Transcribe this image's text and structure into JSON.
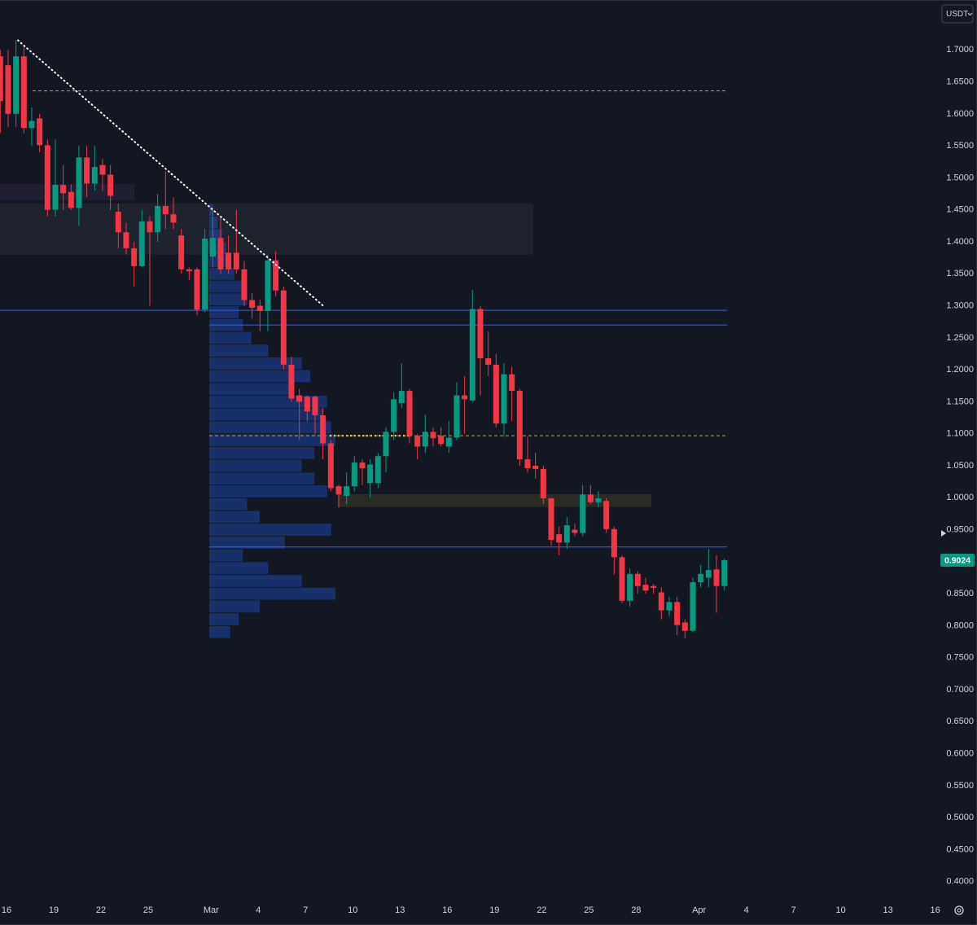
{
  "chart_data": {
    "type": "candlestick",
    "currency": "USDT",
    "up_color": "#089981",
    "down_color": "#f23645",
    "ylim": [
      0.378,
      1.778
    ],
    "yticks": [
      {
        "value": 1.7,
        "label": "1.7000"
      },
      {
        "value": 1.65,
        "label": "1.6500"
      },
      {
        "value": 1.6,
        "label": "1.6000"
      },
      {
        "value": 1.55,
        "label": "1.5500"
      },
      {
        "value": 1.5,
        "label": "1.5000"
      },
      {
        "value": 1.45,
        "label": "1.4500"
      },
      {
        "value": 1.4,
        "label": "1.4000"
      },
      {
        "value": 1.35,
        "label": "1.3500"
      },
      {
        "value": 1.3,
        "label": "1.3000"
      },
      {
        "value": 1.25,
        "label": "1.2500"
      },
      {
        "value": 1.2,
        "label": "1.2000"
      },
      {
        "value": 1.15,
        "label": "1.1500"
      },
      {
        "value": 1.1,
        "label": "1.1000"
      },
      {
        "value": 1.05,
        "label": "1.0500"
      },
      {
        "value": 1.0,
        "label": "1.0000"
      },
      {
        "value": 0.95,
        "label": "0.9500"
      },
      {
        "value": 0.9,
        "label": "0.9000"
      },
      {
        "value": 0.85,
        "label": "0.8500"
      },
      {
        "value": 0.8,
        "label": "0.8000"
      },
      {
        "value": 0.75,
        "label": "0.7500"
      },
      {
        "value": 0.7,
        "label": "0.7000"
      },
      {
        "value": 0.65,
        "label": "0.6500"
      },
      {
        "value": 0.6,
        "label": "0.6000"
      },
      {
        "value": 0.55,
        "label": "0.5500"
      },
      {
        "value": 0.5,
        "label": "0.5000"
      },
      {
        "value": 0.45,
        "label": "0.4500"
      },
      {
        "value": 0.4,
        "label": "0.4000"
      }
    ],
    "categories": [
      null,
      "16",
      null,
      null,
      null,
      null,
      null,
      "19",
      null,
      null,
      null,
      null,
      null,
      "22",
      null,
      null,
      null,
      null,
      null,
      "25",
      null,
      null,
      null,
      null,
      null,
      null,
      null,
      "Mar",
      null,
      null,
      null,
      null,
      null,
      "4",
      null,
      null,
      null,
      null,
      null,
      "7",
      null,
      null,
      null,
      null,
      null,
      "10",
      null,
      null,
      null,
      null,
      null,
      "13",
      null,
      null,
      null,
      null,
      null,
      "16",
      null,
      null,
      null,
      null,
      null,
      "19",
      null,
      null,
      null,
      null,
      null,
      "22",
      null,
      null,
      null,
      null,
      null,
      "25",
      null,
      null,
      null,
      null,
      null,
      "28",
      null,
      null,
      null,
      null,
      null,
      null,
      null,
      "Apr",
      null,
      null,
      null,
      null,
      null,
      "4",
      null,
      null,
      null,
      null,
      null,
      "7",
      null,
      null,
      null,
      null,
      null,
      "10",
      null,
      null,
      null,
      null,
      null,
      "13",
      null,
      null,
      null,
      null,
      null,
      "16"
    ],
    "open": [
      1.69,
      1.676,
      1.6,
      1.69,
      1.578,
      1.593,
      1.551,
      1.45,
      1.489,
      1.478,
      1.453,
      1.532,
      1.491,
      1.52,
      1.505,
      1.447,
      1.415,
      1.39,
      1.362,
      1.432,
      1.415,
      1.456,
      1.443,
      1.41,
      1.357,
      1.357,
      1.294,
      1.377,
      1.406,
      1.383,
      1.383,
      1.357,
      1.309,
      1.3,
      1.292,
      1.371,
      1.324,
      1.208,
      1.16,
      1.158,
      1.158,
      1.129,
      1.085,
      1.018,
      1.003,
      1.018,
      1.055,
      1.023,
      1.023,
      1.065,
      1.103,
      1.148,
      1.167,
      1.097,
      1.08,
      1.103,
      1.097,
      1.08,
      1.094,
      1.16,
      1.152,
      1.295,
      1.218,
      1.208,
      1.116,
      1.193,
      1.167,
      1.06,
      1.05,
      1.045,
      0.999,
      0.943,
      0.93,
      0.95,
      0.945,
      1.005,
      0.993,
      0.995,
      0.951,
      0.907,
      0.839,
      0.881,
      0.864,
      0.862,
      0.852,
      0.824,
      0.837,
      0.805,
      0.792,
      0.868,
      0.875,
      0.888,
      0.862,
      null,
      null,
      null,
      null,
      null,
      null,
      null,
      null,
      null,
      null,
      null,
      null,
      null,
      null,
      null,
      null,
      null,
      null,
      null,
      null,
      null,
      null,
      null,
      null,
      null,
      null,
      null
    ],
    "high": [
      1.7,
      1.7,
      1.715,
      1.705,
      1.61,
      1.6,
      1.56,
      1.56,
      1.52,
      1.49,
      1.55,
      1.55,
      1.55,
      1.53,
      1.52,
      1.46,
      1.43,
      1.4,
      1.45,
      1.44,
      1.475,
      1.51,
      1.47,
      1.42,
      1.36,
      1.36,
      1.42,
      1.45,
      1.44,
      1.41,
      1.45,
      1.37,
      1.32,
      1.31,
      1.38,
      1.385,
      1.33,
      1.22,
      1.17,
      1.16,
      1.16,
      1.14,
      1.09,
      1.02,
      1.04,
      1.065,
      1.06,
      1.06,
      1.07,
      1.11,
      1.165,
      1.21,
      1.17,
      1.1,
      1.13,
      1.11,
      1.11,
      1.12,
      1.18,
      1.19,
      1.325,
      1.3,
      1.26,
      1.225,
      1.21,
      1.205,
      1.17,
      1.095,
      1.07,
      1.05,
      1.0,
      0.955,
      0.97,
      0.96,
      1.02,
      1.02,
      1.01,
      1.0,
      0.955,
      0.91,
      0.89,
      0.885,
      0.875,
      0.865,
      0.86,
      0.845,
      0.845,
      0.81,
      0.875,
      0.895,
      0.92,
      0.91,
      0.905,
      null,
      null,
      null,
      null,
      null,
      null,
      null,
      null,
      null,
      null,
      null,
      null,
      null,
      null,
      null,
      null,
      null,
      null,
      null,
      null,
      null,
      null,
      null,
      null,
      null,
      null,
      null
    ],
    "low": [
      1.57,
      1.58,
      1.58,
      1.57,
      1.55,
      1.54,
      1.44,
      1.44,
      1.45,
      1.45,
      1.425,
      1.47,
      1.48,
      1.48,
      1.45,
      1.39,
      1.38,
      1.33,
      1.36,
      1.3,
      1.4,
      1.42,
      1.42,
      1.35,
      1.34,
      1.285,
      1.29,
      1.36,
      1.35,
      1.35,
      1.35,
      1.3,
      1.28,
      1.26,
      1.26,
      1.315,
      1.2,
      1.15,
      1.09,
      1.12,
      1.1,
      1.06,
      1.01,
      0.985,
      0.99,
      1.01,
      1.02,
      1.0,
      1.015,
      1.04,
      1.09,
      1.14,
      1.085,
      1.06,
      1.07,
      1.08,
      1.08,
      1.07,
      1.09,
      1.1,
      1.15,
      1.16,
      1.19,
      1.11,
      1.095,
      1.12,
      1.05,
      1.04,
      1.03,
      0.99,
      0.925,
      0.91,
      0.92,
      0.94,
      0.94,
      0.99,
      0.985,
      0.945,
      0.88,
      0.835,
      0.83,
      0.85,
      0.85,
      0.85,
      0.81,
      0.815,
      0.785,
      0.78,
      0.79,
      0.86,
      0.86,
      0.82,
      0.855,
      null,
      null,
      null,
      null,
      null,
      null,
      null,
      null,
      null,
      null,
      null,
      null,
      null,
      null,
      null,
      null,
      null,
      null,
      null,
      null,
      null,
      null,
      null,
      null,
      null,
      null,
      null
    ],
    "close": [
      1.62,
      1.6,
      1.69,
      1.578,
      1.589,
      1.551,
      1.45,
      1.489,
      1.476,
      1.453,
      1.532,
      1.491,
      1.517,
      1.505,
      1.472,
      1.415,
      1.39,
      1.362,
      1.432,
      1.415,
      1.456,
      1.443,
      1.43,
      1.357,
      1.354,
      1.294,
      1.405,
      1.406,
      1.357,
      1.357,
      1.357,
      1.309,
      1.297,
      1.292,
      1.371,
      1.324,
      1.208,
      1.155,
      1.15,
      1.135,
      1.129,
      1.085,
      1.015,
      1.005,
      1.018,
      1.055,
      1.046,
      1.052,
      1.065,
      1.103,
      1.154,
      1.167,
      1.097,
      1.08,
      1.103,
      1.093,
      1.084,
      1.094,
      1.16,
      1.154,
      1.295,
      1.218,
      1.208,
      1.116,
      1.193,
      1.167,
      1.06,
      1.046,
      1.045,
      0.999,
      0.934,
      0.93,
      0.957,
      0.945,
      1.005,
      0.993,
      0.999,
      0.951,
      0.907,
      0.839,
      0.881,
      0.862,
      0.855,
      0.859,
      0.824,
      0.837,
      0.801,
      0.792,
      0.868,
      0.881,
      0.887,
      0.862,
      0.9024,
      null,
      null,
      null,
      null,
      null,
      null,
      null,
      null,
      null,
      null,
      null,
      null,
      null,
      null,
      null,
      null,
      null,
      null,
      null,
      null,
      null,
      null,
      null,
      null,
      null,
      null,
      null
    ],
    "last_price": {
      "value": 0.9024,
      "label": "0.9024"
    },
    "levels": [
      {
        "price": 1.293,
        "color": "#2962ff",
        "style": "solid"
      },
      {
        "price": 1.27,
        "color": "#2962ff",
        "style": "solid"
      },
      {
        "price": 0.923,
        "color": "#2962ff",
        "style": "solid"
      },
      {
        "price": 1.636,
        "color": "#c9a227",
        "style": "dashed"
      },
      {
        "price": 1.097,
        "color": "#c9a227",
        "style": "dashed"
      },
      {
        "price": 1.097,
        "color": "#f5e146",
        "style": "dotted"
      }
    ],
    "zones": [
      {
        "top": 1.46,
        "bottom": 1.38,
        "color": "#1e222d"
      },
      {
        "top": 1.4905,
        "bottom": 1.465,
        "color": "#1f1e33"
      },
      {
        "top": 1.0055,
        "bottom": 0.9855,
        "color": "#2a2b22"
      }
    ],
    "trendline": {
      "start": 1.715,
      "end": 1.3,
      "color": "#ffffff"
    },
    "volume_profile": {
      "color": "#2962ff",
      "prices": [
        0.79,
        0.81,
        0.83,
        0.85,
        0.87,
        0.89,
        0.91,
        0.93,
        0.95,
        0.97,
        0.99,
        1.01,
        1.03,
        1.05,
        1.07,
        1.09,
        1.11,
        1.13,
        1.15,
        1.17,
        1.19,
        1.21,
        1.23,
        1.25,
        1.27,
        1.29,
        1.31,
        1.33,
        1.35,
        1.37,
        1.39,
        1.41,
        1.43,
        1.45
      ],
      "volumes": [
        25,
        35,
        60,
        150,
        110,
        70,
        40,
        90,
        145,
        60,
        45,
        140,
        125,
        110,
        125,
        150,
        145,
        135,
        140,
        95,
        120,
        110,
        70,
        50,
        40,
        35,
        45,
        40,
        30,
        25,
        20,
        15,
        10,
        5
      ]
    }
  }
}
